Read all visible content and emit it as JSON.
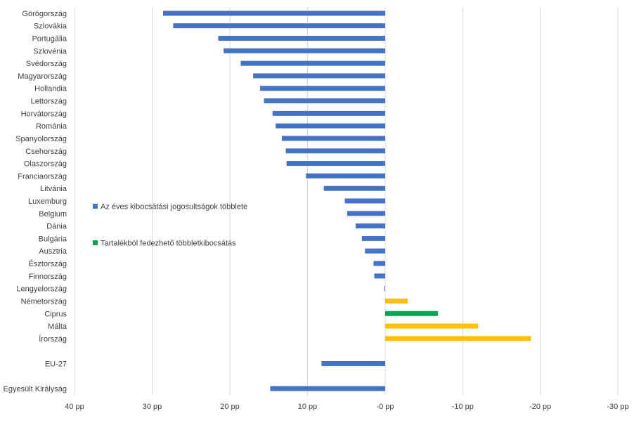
{
  "chart_data": {
    "type": "bar",
    "orientation": "horizontal",
    "x_axis": {
      "min": -30,
      "max": 40,
      "reversed": true,
      "ticks": [
        {
          "value": 40,
          "label": "40 pp"
        },
        {
          "value": 30,
          "label": "30 pp"
        },
        {
          "value": 20,
          "label": "20 pp"
        },
        {
          "value": 10,
          "label": "10 pp"
        },
        {
          "value": 0,
          "label": "-0 pp"
        },
        {
          "value": -10,
          "label": "-10 pp"
        },
        {
          "value": -20,
          "label": "-20 pp"
        },
        {
          "value": -30,
          "label": "-30 pp"
        }
      ]
    },
    "gridlines": true,
    "legend": {
      "placement": "left-middle",
      "entries": [
        {
          "name": "Az éves kibocsátási jogosultságok többlete",
          "color": "#4472C4"
        },
        {
          "name": "Tartalékból fedezhető többletkibocsátás",
          "color": "#00A550"
        }
      ]
    },
    "rows": [
      {
        "category": "Görögország",
        "value": 28.6,
        "color": "#4472C4"
      },
      {
        "category": "Szlovákia",
        "value": 27.3,
        "color": "#4472C4"
      },
      {
        "category": "Portugália",
        "value": 21.5,
        "color": "#4472C4"
      },
      {
        "category": "Szlovénia",
        "value": 20.8,
        "color": "#4472C4"
      },
      {
        "category": "Svédország",
        "value": 18.6,
        "color": "#4472C4"
      },
      {
        "category": "Magyarország",
        "value": 17.0,
        "color": "#4472C4"
      },
      {
        "category": "Hollandia",
        "value": 16.1,
        "color": "#4472C4"
      },
      {
        "category": "Lettország",
        "value": 15.6,
        "color": "#4472C4"
      },
      {
        "category": "Horvátország",
        "value": 14.5,
        "color": "#4472C4"
      },
      {
        "category": "Románia",
        "value": 14.1,
        "color": "#4472C4"
      },
      {
        "category": "Spanyolország",
        "value": 13.3,
        "color": "#4472C4"
      },
      {
        "category": "Csehország",
        "value": 12.8,
        "color": "#4472C4"
      },
      {
        "category": "Olaszország",
        "value": 12.7,
        "color": "#4472C4"
      },
      {
        "category": "Franciaország",
        "value": 10.2,
        "color": "#4472C4"
      },
      {
        "category": "Litvánia",
        "value": 7.9,
        "color": "#4472C4"
      },
      {
        "category": "Luxemburg",
        "value": 5.2,
        "color": "#4472C4"
      },
      {
        "category": "Belgium",
        "value": 4.9,
        "color": "#4472C4"
      },
      {
        "category": "Dánia",
        "value": 3.8,
        "color": "#4472C4"
      },
      {
        "category": "Bulgária",
        "value": 3.0,
        "color": "#4472C4"
      },
      {
        "category": "Ausztria",
        "value": 2.6,
        "color": "#4472C4"
      },
      {
        "category": "Észtország",
        "value": 1.5,
        "color": "#4472C4"
      },
      {
        "category": "Finnország",
        "value": 1.4,
        "color": "#4472C4"
      },
      {
        "category": "Lengyelország",
        "value": 0.1,
        "color": "#4472C4"
      },
      {
        "category": "Németország",
        "value": -2.9,
        "color": "#FFC000"
      },
      {
        "category": "Ciprus",
        "value": -6.8,
        "color": "#00A550"
      },
      {
        "category": "Málta",
        "value": -12.0,
        "color": "#FFC000"
      },
      {
        "category": "Írország",
        "value": -18.8,
        "color": "#FFC000"
      },
      {
        "category": "",
        "value": null,
        "color": null
      },
      {
        "category": "EU-27",
        "value": 8.2,
        "color": "#4472C4"
      },
      {
        "category": "",
        "value": null,
        "color": null
      },
      {
        "category": "Egyesült Királyság",
        "value": 14.8,
        "color": "#4472C4"
      }
    ]
  }
}
